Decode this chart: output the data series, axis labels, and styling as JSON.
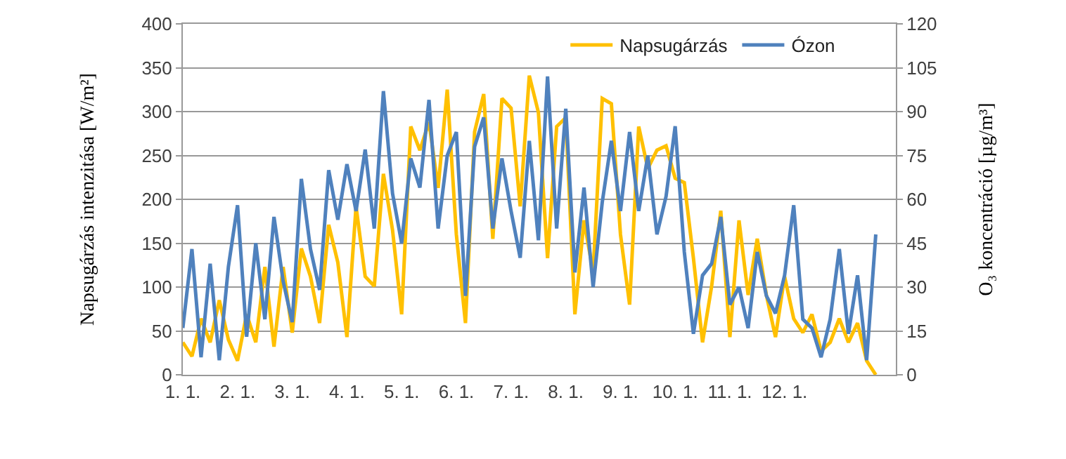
{
  "chart_data": {
    "type": "line",
    "ylabel": "Napsugárzás intenzitása [W/m²]",
    "y2label": "O₃ koncentráció [µg/m³]",
    "categories": [
      "1. 1.",
      null,
      null,
      null,
      null,
      null,
      "2. 1.",
      null,
      null,
      null,
      null,
      null,
      "3. 1.",
      null,
      null,
      null,
      null,
      null,
      "4. 1.",
      null,
      null,
      null,
      null,
      null,
      "5. 1.",
      null,
      null,
      null,
      null,
      null,
      "6. 1.",
      null,
      null,
      null,
      null,
      null,
      "7. 1.",
      null,
      null,
      null,
      null,
      null,
      "8. 1.",
      null,
      null,
      null,
      null,
      null,
      "9. 1.",
      null,
      null,
      null,
      null,
      null,
      "10. 1.",
      null,
      null,
      null,
      null,
      null,
      "11. 1.",
      null,
      null,
      null,
      null,
      null,
      "12. 1.",
      null,
      null,
      null,
      null,
      null,
      null,
      null,
      null,
      null,
      null
    ],
    "ylim": [
      0,
      400
    ],
    "yticks": [
      0,
      50,
      100,
      150,
      200,
      250,
      300,
      350,
      400
    ],
    "y2lim": [
      0,
      120
    ],
    "y2ticks": [
      0,
      15,
      30,
      45,
      60,
      75,
      90,
      105,
      120
    ],
    "grid": "y",
    "legend": "top",
    "marker": "none",
    "line_style": "solid",
    "series": [
      {
        "name": "Napsugárzás",
        "color": "#ffc000",
        "values": [
          37,
          21,
          64,
          37,
          85,
          40,
          16,
          69,
          37,
          123,
          32,
          123,
          48,
          144,
          112,
          59,
          171,
          128,
          43,
          192,
          112,
          101,
          229,
          165,
          69,
          283,
          256,
          288,
          213,
          325,
          160,
          59,
          277,
          320,
          155,
          315,
          304,
          192,
          341,
          299,
          133,
          283,
          293,
          69,
          176,
          117,
          315,
          309,
          160,
          80,
          283,
          235,
          256,
          261,
          224,
          219,
          133,
          37,
          101,
          187,
          43,
          176,
          91,
          155,
          91,
          43,
          112,
          64,
          48,
          69,
          27,
          37,
          64,
          37,
          59,
          16,
          0
        ]
      },
      {
        "name": "Ózon",
        "color": "#4f81bd",
        "axis": "y2",
        "values": [
          16,
          43,
          6,
          38,
          5,
          37,
          58,
          13,
          45,
          19,
          54,
          32,
          18,
          67,
          43,
          29,
          70,
          53,
          72,
          56,
          77,
          50,
          97,
          62,
          45,
          74,
          64,
          94,
          50,
          75,
          83,
          27,
          78,
          88,
          50,
          74,
          56,
          40,
          80,
          46,
          102,
          50,
          91,
          35,
          64,
          30,
          59,
          80,
          56,
          83,
          56,
          75,
          48,
          61,
          85,
          42,
          14,
          34,
          38,
          54,
          24,
          30,
          16,
          42,
          27,
          21,
          34,
          58,
          19,
          16,
          6,
          19,
          43,
          14,
          34,
          5,
          48
        ]
      }
    ]
  }
}
